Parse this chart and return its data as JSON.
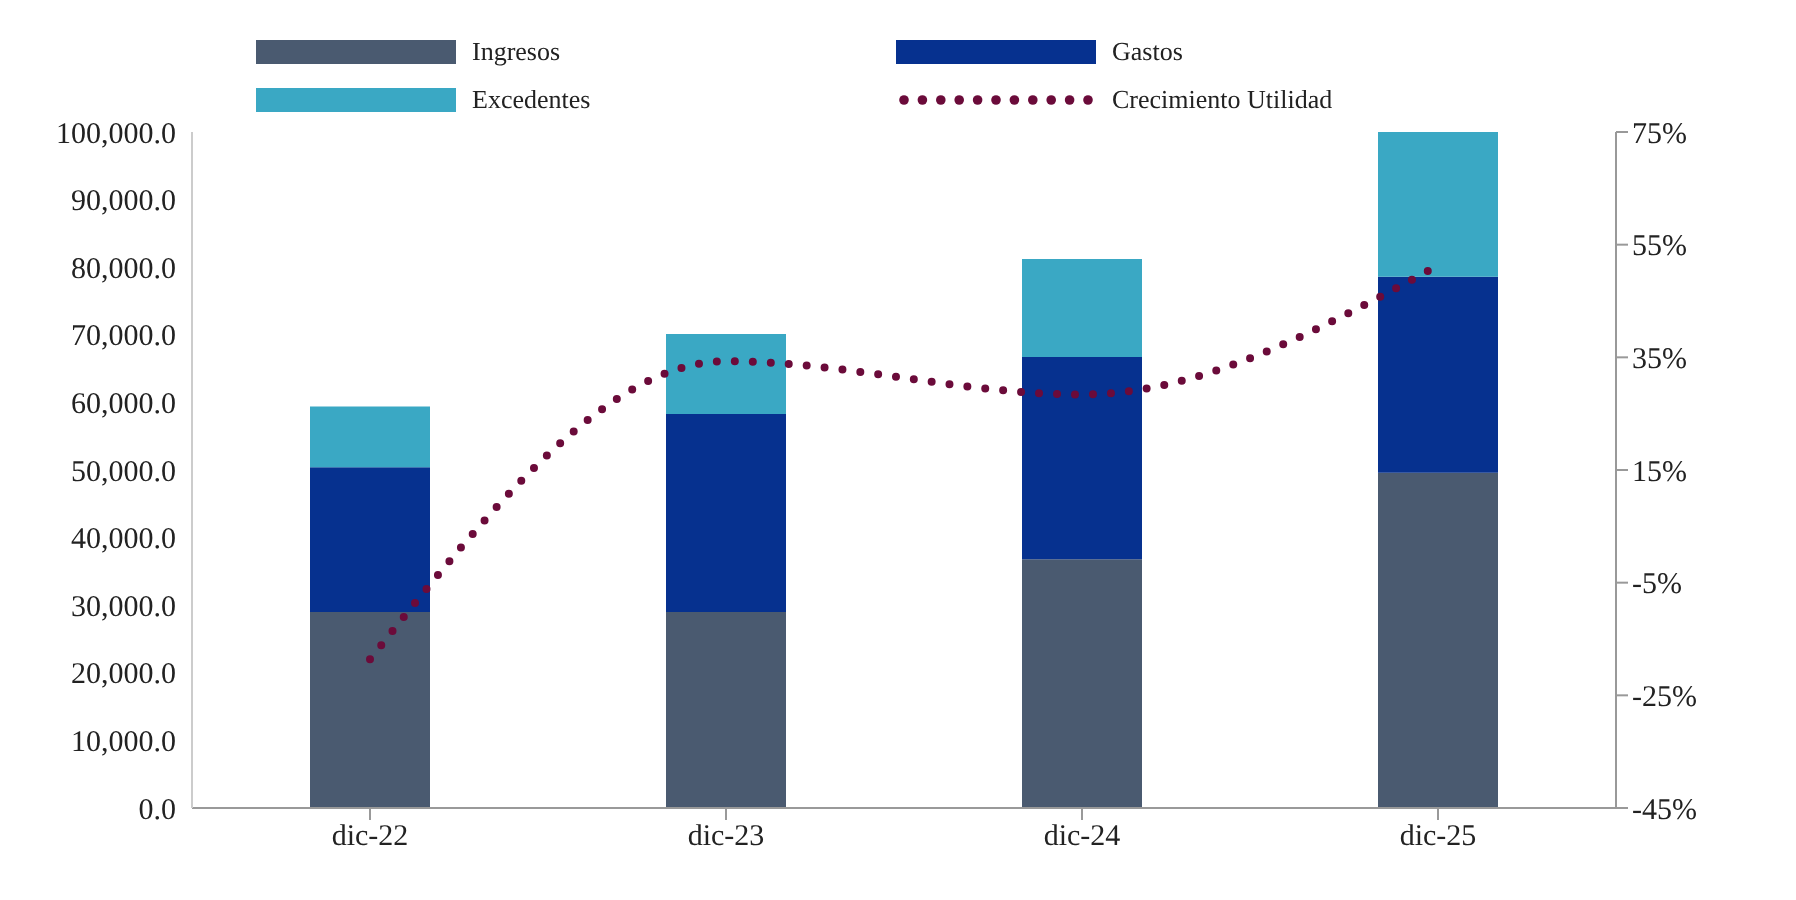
{
  "chart_data": {
    "type": "bar",
    "stacked": true,
    "categories": [
      "dic-22",
      "dic-23",
      "dic-24",
      "dic-25"
    ],
    "series": [
      {
        "name": "Ingresos",
        "color": "#4a5a70",
        "values": [
          29000,
          29000,
          36800,
          49600
        ]
      },
      {
        "name": "Gastos",
        "color": "#06318f",
        "values": [
          21400,
          29300,
          29900,
          29000
        ]
      },
      {
        "name": "Excedentes",
        "color": "#3aa8c4",
        "values": [
          9000,
          11800,
          14500,
          21400
        ]
      },
      {
        "name": "Crecimiento Utilidad",
        "type": "line",
        "axis": "y2",
        "color": "#6b0b3a",
        "line_style": "dotted",
        "values": [
          -18.6,
          34.3,
          28.4,
          51.3
        ]
      }
    ],
    "ylim": [
      0,
      100000
    ],
    "yticks": [
      {
        "value": 0,
        "label": "0.0"
      },
      {
        "value": 10000,
        "label": "10,000.0"
      },
      {
        "value": 20000,
        "label": "20,000.0"
      },
      {
        "value": 30000,
        "label": "30,000.0"
      },
      {
        "value": 40000,
        "label": "40,000.0"
      },
      {
        "value": 50000,
        "label": "50,000.0"
      },
      {
        "value": 60000,
        "label": "60,000.0"
      },
      {
        "value": 70000,
        "label": "70,000.0"
      },
      {
        "value": 80000,
        "label": "80,000.0"
      },
      {
        "value": 90000,
        "label": "90,000.0"
      },
      {
        "value": 100000,
        "label": "100,000.0"
      }
    ],
    "y2lim": [
      -45,
      75
    ],
    "y2ticks": [
      {
        "value": -45,
        "label": "-45%"
      },
      {
        "value": -25,
        "label": "-25%"
      },
      {
        "value": -5,
        "label": "-5%"
      },
      {
        "value": 15,
        "label": "15%"
      },
      {
        "value": 35,
        "label": "35%"
      },
      {
        "value": 55,
        "label": "55%"
      },
      {
        "value": 75,
        "label": "75%"
      }
    ],
    "grid": false,
    "legend": "top"
  }
}
